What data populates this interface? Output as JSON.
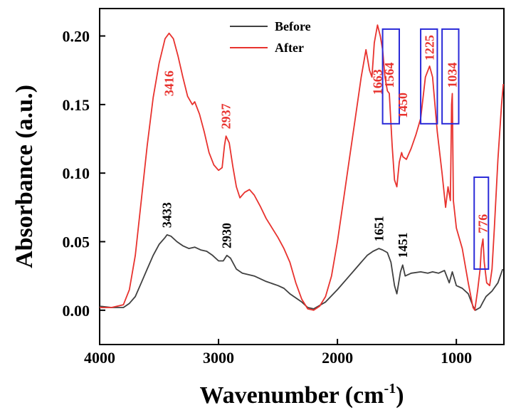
{
  "chart_data": {
    "type": "line",
    "title": "",
    "xlabel": "Wavenumber (cm-1)",
    "xlabel_main": "Wavenumber (cm",
    "xlabel_sup": "-1",
    "xlabel_close": ")",
    "ylabel": "Absorbance (a.u.)",
    "xlim": [
      4000,
      600
    ],
    "ylim": [
      -0.025,
      0.22
    ],
    "x_ticks": [
      4000,
      3000,
      2000,
      1000
    ],
    "x_tick_labels": [
      "4000",
      "3000",
      "2000",
      "1000"
    ],
    "y_ticks": [
      0.0,
      0.05,
      0.1,
      0.15,
      0.2
    ],
    "y_tick_labels": [
      "0.00",
      "0.05",
      "0.10",
      "0.15",
      "0.20"
    ],
    "legend": [
      {
        "name": "Before",
        "color": "#404040"
      },
      {
        "name": "After",
        "color": "#e8322e"
      }
    ],
    "series": [
      {
        "name": "Before",
        "color": "#404040",
        "points": [
          [
            4000,
            0.003
          ],
          [
            3900,
            0.002
          ],
          [
            3800,
            0.002
          ],
          [
            3750,
            0.005
          ],
          [
            3700,
            0.01
          ],
          [
            3650,
            0.02
          ],
          [
            3600,
            0.03
          ],
          [
            3550,
            0.04
          ],
          [
            3500,
            0.048
          ],
          [
            3450,
            0.053
          ],
          [
            3433,
            0.055
          ],
          [
            3400,
            0.054
          ],
          [
            3350,
            0.05
          ],
          [
            3300,
            0.047
          ],
          [
            3250,
            0.045
          ],
          [
            3200,
            0.046
          ],
          [
            3150,
            0.044
          ],
          [
            3100,
            0.043
          ],
          [
            3050,
            0.04
          ],
          [
            3000,
            0.036
          ],
          [
            2960,
            0.036
          ],
          [
            2930,
            0.04
          ],
          [
            2900,
            0.038
          ],
          [
            2850,
            0.03
          ],
          [
            2800,
            0.027
          ],
          [
            2700,
            0.025
          ],
          [
            2600,
            0.021
          ],
          [
            2500,
            0.018
          ],
          [
            2450,
            0.016
          ],
          [
            2400,
            0.012
          ],
          [
            2300,
            0.006
          ],
          [
            2250,
            0.002
          ],
          [
            2200,
            0.001
          ],
          [
            2100,
            0.006
          ],
          [
            2000,
            0.015
          ],
          [
            1900,
            0.025
          ],
          [
            1850,
            0.03
          ],
          [
            1800,
            0.035
          ],
          [
            1750,
            0.04
          ],
          [
            1700,
            0.043
          ],
          [
            1651,
            0.045
          ],
          [
            1620,
            0.044
          ],
          [
            1580,
            0.042
          ],
          [
            1550,
            0.035
          ],
          [
            1520,
            0.018
          ],
          [
            1500,
            0.012
          ],
          [
            1470,
            0.028
          ],
          [
            1451,
            0.033
          ],
          [
            1430,
            0.025
          ],
          [
            1380,
            0.027
          ],
          [
            1300,
            0.028
          ],
          [
            1240,
            0.027
          ],
          [
            1200,
            0.028
          ],
          [
            1150,
            0.027
          ],
          [
            1100,
            0.029
          ],
          [
            1060,
            0.02
          ],
          [
            1034,
            0.028
          ],
          [
            1000,
            0.018
          ],
          [
            950,
            0.016
          ],
          [
            900,
            0.012
          ],
          [
            860,
            0.003
          ],
          [
            840,
            0.0
          ],
          [
            800,
            0.002
          ],
          [
            776,
            0.006
          ],
          [
            750,
            0.01
          ],
          [
            700,
            0.014
          ],
          [
            650,
            0.02
          ],
          [
            610,
            0.03
          ]
        ]
      },
      {
        "name": "After",
        "color": "#e8322e",
        "points": [
          [
            4000,
            0.002
          ],
          [
            3900,
            0.002
          ],
          [
            3800,
            0.004
          ],
          [
            3750,
            0.015
          ],
          [
            3700,
            0.04
          ],
          [
            3650,
            0.08
          ],
          [
            3600,
            0.12
          ],
          [
            3550,
            0.155
          ],
          [
            3500,
            0.18
          ],
          [
            3450,
            0.198
          ],
          [
            3416,
            0.202
          ],
          [
            3380,
            0.198
          ],
          [
            3340,
            0.185
          ],
          [
            3300,
            0.17
          ],
          [
            3260,
            0.156
          ],
          [
            3220,
            0.15
          ],
          [
            3200,
            0.152
          ],
          [
            3160,
            0.143
          ],
          [
            3120,
            0.13
          ],
          [
            3080,
            0.115
          ],
          [
            3040,
            0.106
          ],
          [
            3000,
            0.102
          ],
          [
            2970,
            0.104
          ],
          [
            2950,
            0.12
          ],
          [
            2937,
            0.127
          ],
          [
            2910,
            0.122
          ],
          [
            2880,
            0.105
          ],
          [
            2850,
            0.09
          ],
          [
            2820,
            0.082
          ],
          [
            2780,
            0.086
          ],
          [
            2740,
            0.088
          ],
          [
            2700,
            0.084
          ],
          [
            2650,
            0.076
          ],
          [
            2600,
            0.067
          ],
          [
            2550,
            0.06
          ],
          [
            2500,
            0.053
          ],
          [
            2450,
            0.045
          ],
          [
            2400,
            0.035
          ],
          [
            2350,
            0.02
          ],
          [
            2300,
            0.008
          ],
          [
            2250,
            0.001
          ],
          [
            2200,
            0.0
          ],
          [
            2150,
            0.003
          ],
          [
            2100,
            0.01
          ],
          [
            2050,
            0.025
          ],
          [
            2000,
            0.05
          ],
          [
            1950,
            0.08
          ],
          [
            1900,
            0.11
          ],
          [
            1850,
            0.14
          ],
          [
            1800,
            0.17
          ],
          [
            1760,
            0.19
          ],
          [
            1730,
            0.175
          ],
          [
            1710,
            0.17
          ],
          [
            1690,
            0.195
          ],
          [
            1663,
            0.208
          ],
          [
            1640,
            0.2
          ],
          [
            1620,
            0.19
          ],
          [
            1600,
            0.17
          ],
          [
            1580,
            0.16
          ],
          [
            1564,
            0.158
          ],
          [
            1540,
            0.12
          ],
          [
            1520,
            0.095
          ],
          [
            1500,
            0.09
          ],
          [
            1480,
            0.108
          ],
          [
            1460,
            0.115
          ],
          [
            1450,
            0.112
          ],
          [
            1420,
            0.11
          ],
          [
            1380,
            0.118
          ],
          [
            1340,
            0.128
          ],
          [
            1300,
            0.14
          ],
          [
            1260,
            0.17
          ],
          [
            1225,
            0.178
          ],
          [
            1200,
            0.17
          ],
          [
            1160,
            0.13
          ],
          [
            1120,
            0.1
          ],
          [
            1090,
            0.075
          ],
          [
            1070,
            0.09
          ],
          [
            1050,
            0.08
          ],
          [
            1040,
            0.15
          ],
          [
            1034,
            0.158
          ],
          [
            1025,
            0.08
          ],
          [
            1000,
            0.06
          ],
          [
            950,
            0.045
          ],
          [
            900,
            0.02
          ],
          [
            860,
            0.002
          ],
          [
            845,
            0.0
          ],
          [
            820,
            0.015
          ],
          [
            800,
            0.03
          ],
          [
            790,
            0.045
          ],
          [
            776,
            0.052
          ],
          [
            765,
            0.035
          ],
          [
            745,
            0.02
          ],
          [
            720,
            0.018
          ],
          [
            700,
            0.03
          ],
          [
            680,
            0.06
          ],
          [
            650,
            0.11
          ],
          [
            620,
            0.15
          ],
          [
            605,
            0.165
          ]
        ]
      }
    ],
    "peak_labels": [
      {
        "text": "3433",
        "x": 3433,
        "y": 0.058,
        "series": "Before"
      },
      {
        "text": "2930",
        "x": 2930,
        "y": 0.043,
        "series": "Before"
      },
      {
        "text": "1651",
        "x": 1651,
        "y": 0.048,
        "series": "Before"
      },
      {
        "text": "1451",
        "x": 1451,
        "y": 0.036,
        "series": "Before"
      },
      {
        "text": "3416",
        "x": 3416,
        "y": 0.154,
        "series": "After"
      },
      {
        "text": "2937",
        "x": 2937,
        "y": 0.13,
        "series": "After"
      },
      {
        "text": "1663",
        "x": 1663,
        "y": 0.155,
        "series": "After"
      },
      {
        "text": "1564",
        "x": 1564,
        "y": 0.16,
        "series": "After"
      },
      {
        "text": "1450",
        "x": 1450,
        "y": 0.138,
        "series": "After"
      },
      {
        "text": "1225",
        "x": 1225,
        "y": 0.18,
        "series": "After"
      },
      {
        "text": "1034",
        "x": 1034,
        "y": 0.16,
        "series": "After"
      },
      {
        "text": "776",
        "x": 776,
        "y": 0.054,
        "series": "After"
      }
    ],
    "highlight_boxes": [
      {
        "x_range": [
          1620,
          1480
        ],
        "y_range": [
          0.136,
          0.205
        ]
      },
      {
        "x_range": [
          1300,
          1160
        ],
        "y_range": [
          0.136,
          0.205
        ]
      },
      {
        "x_range": [
          1120,
          980
        ],
        "y_range": [
          0.136,
          0.205
        ]
      },
      {
        "x_range": [
          850,
          730
        ],
        "y_range": [
          0.03,
          0.097
        ]
      }
    ],
    "highlight_color": "#2a2ad8"
  }
}
